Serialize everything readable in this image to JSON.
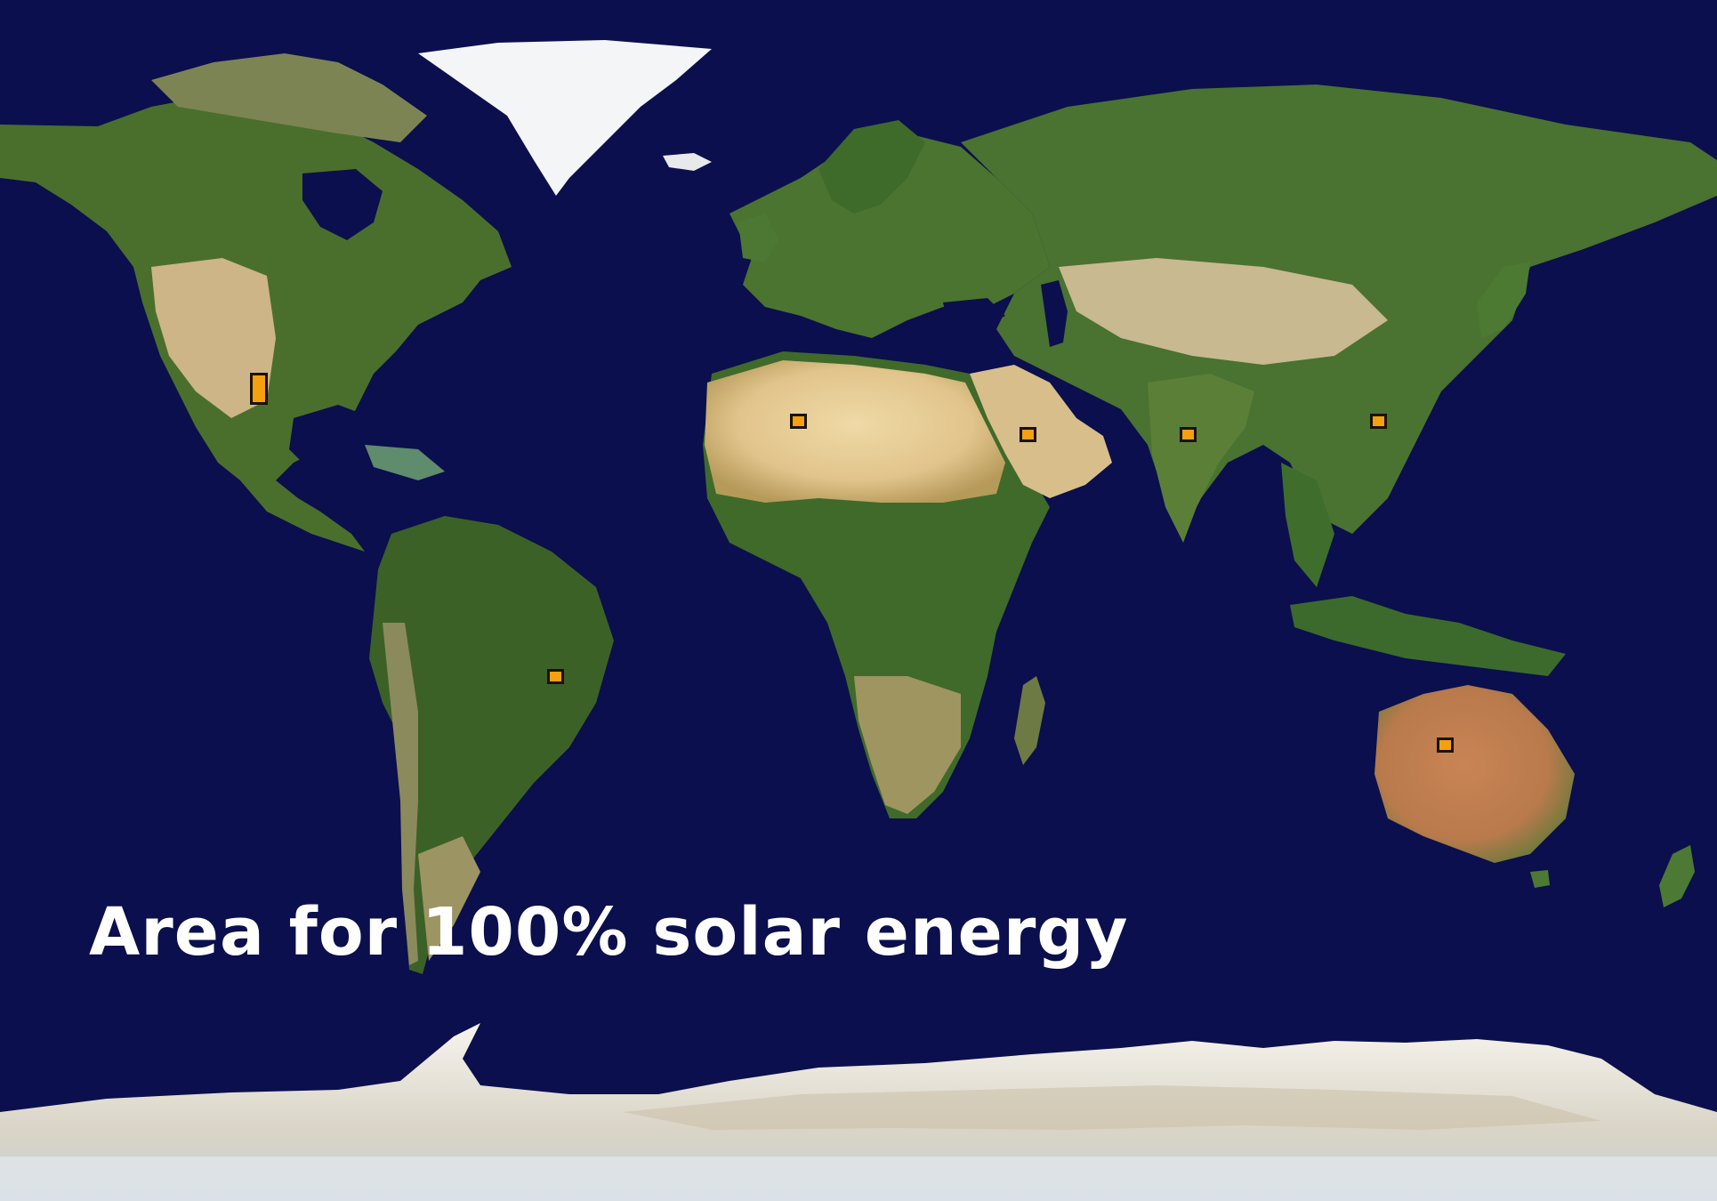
{
  "map": {
    "caption": "Area for 100% solar energy",
    "colors": {
      "ocean": "#0b0f4d",
      "vegetation": "#3f6a2a",
      "desert": "#e6cf9b",
      "ice": "#f1f3f6",
      "marker_fill": "#f5a00f",
      "marker_border": "#1a1205"
    },
    "markers": [
      {
        "name": "marker-north-america"
      },
      {
        "name": "marker-south-america"
      },
      {
        "name": "marker-north-africa"
      },
      {
        "name": "marker-arabia"
      },
      {
        "name": "marker-india"
      },
      {
        "name": "marker-china"
      },
      {
        "name": "marker-australia"
      }
    ]
  }
}
